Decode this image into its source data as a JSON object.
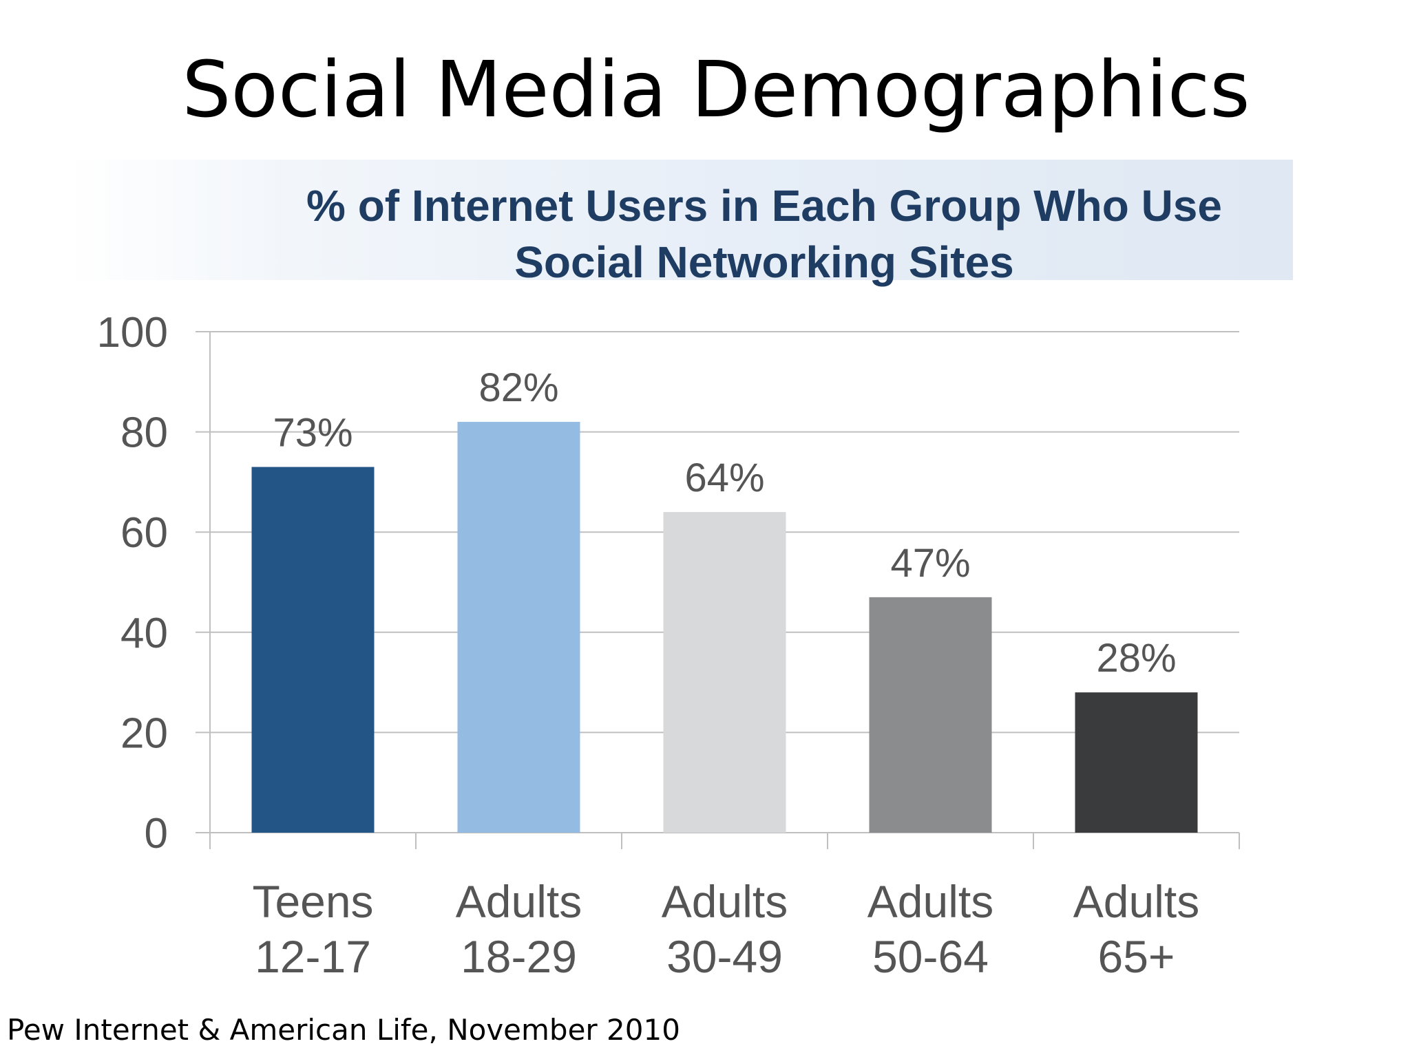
{
  "slide": {
    "title": "Social Media Demographics",
    "source": "Pew Internet & American Life, November 2010"
  },
  "chart_data": {
    "type": "bar",
    "title_lines": [
      "% of Internet Users in Each Group Who Use",
      "Social Networking Sites"
    ],
    "categories": [
      [
        "Teens",
        "12-17"
      ],
      [
        "Adults",
        "18-29"
      ],
      [
        "Adults",
        "30-49"
      ],
      [
        "Adults",
        "50-64"
      ],
      [
        "Adults",
        "65+"
      ]
    ],
    "values": [
      73,
      82,
      64,
      47,
      28
    ],
    "value_labels": [
      "73%",
      "82%",
      "64%",
      "47%",
      "28%"
    ],
    "bar_colors": [
      "#245587",
      "#94bbe2",
      "#d8d9db",
      "#8a8c8d",
      "#3a3b3d"
    ],
    "ylim": [
      0,
      100
    ],
    "yticks": [
      0,
      20,
      40,
      60,
      80,
      100
    ],
    "grid": true,
    "xlabel": "",
    "ylabel": ""
  }
}
